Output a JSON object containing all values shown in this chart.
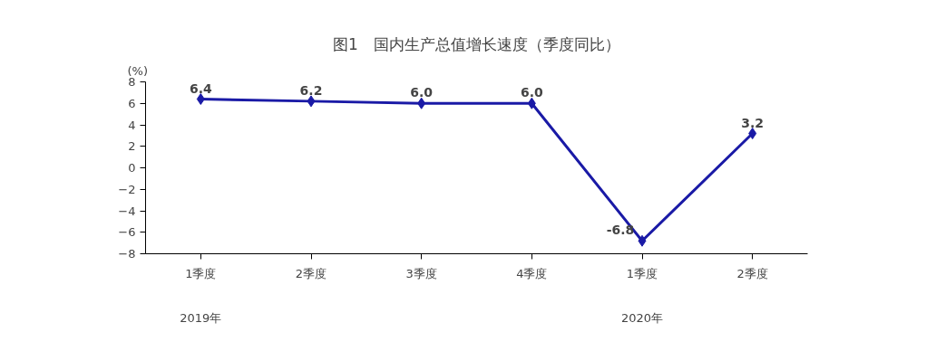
{
  "chart_data": {
    "type": "line",
    "title": "图1　国内生产总值增长速度（季度同比）",
    "ylabel": "(%)",
    "categories": [
      "1季度",
      "2季度",
      "3季度",
      "4季度",
      "1季度",
      "2季度"
    ],
    "series": [
      {
        "color": "#1a1aa6",
        "values": [
          6.4,
          6.2,
          6.0,
          6.0,
          -6.8,
          3.2
        ]
      }
    ],
    "ylim": [
      -8,
      8
    ],
    "yticks": [
      -8,
      -6,
      -4,
      -2,
      0,
      2,
      4,
      6,
      8
    ],
    "value_labels": [
      "6.4",
      "6.2",
      "6.0",
      "6.0",
      "-6.8",
      "3.2"
    ],
    "marker": "diamond",
    "line_style": "solid",
    "grid": false,
    "annotations": [
      "2019年",
      "2020年"
    ]
  }
}
